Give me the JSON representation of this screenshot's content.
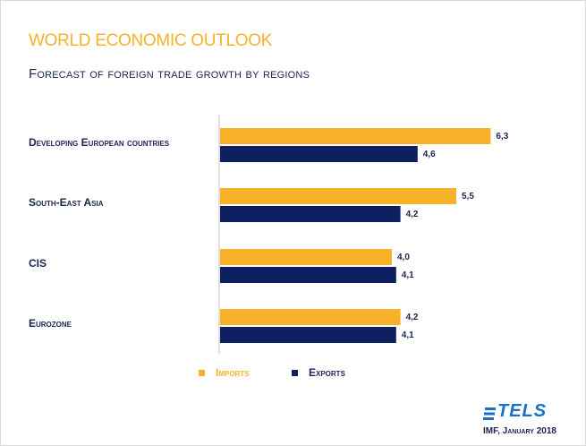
{
  "title": "WORLD ECONOMIC OUTLOOK",
  "subtitle": "Forecast of foreign trade growth by regions",
  "source": "IMF, January 2018",
  "logo": "TELS",
  "colors": {
    "imports": "#f7b22a",
    "exports": "#0f2060",
    "text": "#1a2550",
    "logo": "#1a6fc9"
  },
  "chart_data": {
    "type": "bar",
    "orientation": "horizontal",
    "categories": [
      "Developing European countries",
      "South-East Asia",
      "CIS",
      "Eurozone"
    ],
    "series": [
      {
        "name": "Imports",
        "values": [
          6.3,
          5.5,
          4.0,
          4.2
        ],
        "labels": [
          "6,3",
          "5,5",
          "4,0",
          "4,2"
        ]
      },
      {
        "name": "Exports",
        "values": [
          4.6,
          4.2,
          4.1,
          4.1
        ],
        "labels": [
          "4,6",
          "4,2",
          "4,1",
          "4,1"
        ]
      }
    ],
    "xlim": [
      0,
      7
    ],
    "grid": false,
    "legend_position": "bottom"
  }
}
